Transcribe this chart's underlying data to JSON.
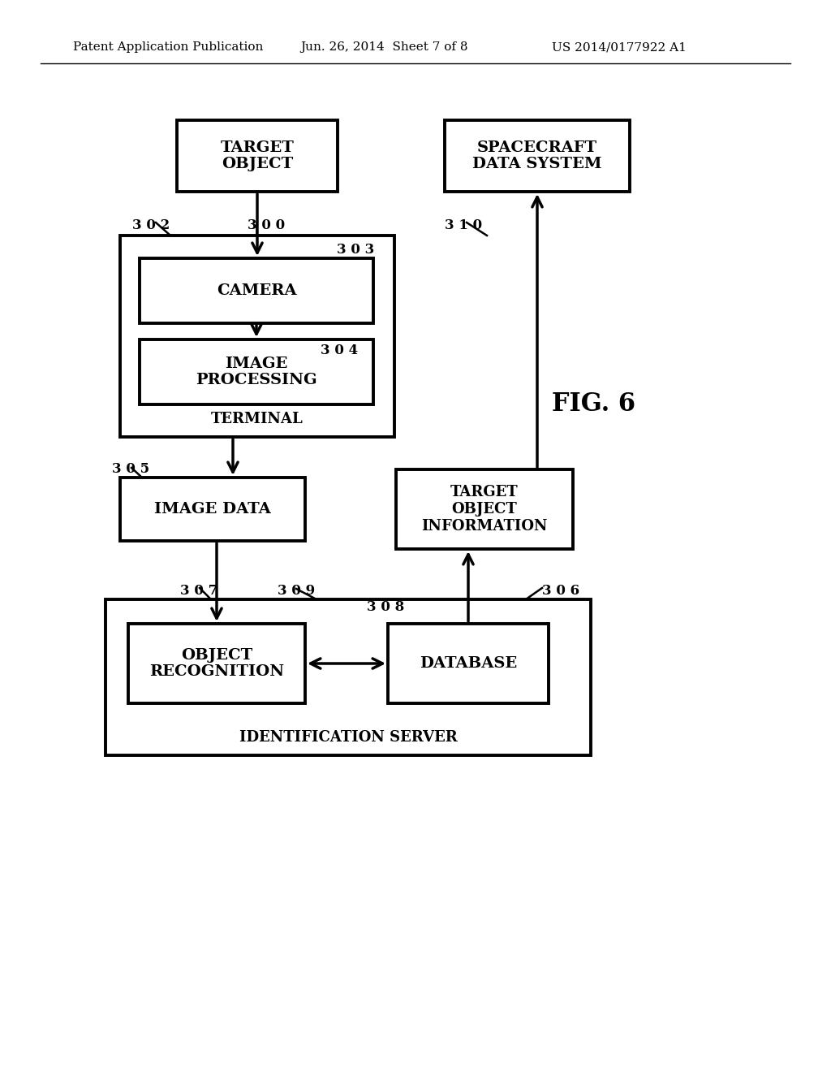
{
  "bg_color": "#ffffff",
  "header_left": "Patent Application Publication",
  "header_center": "Jun. 26, 2014  Sheet 7 of 8",
  "header_right": "US 2014/0177922 A1",
  "fig_label": "FIG. 6"
}
